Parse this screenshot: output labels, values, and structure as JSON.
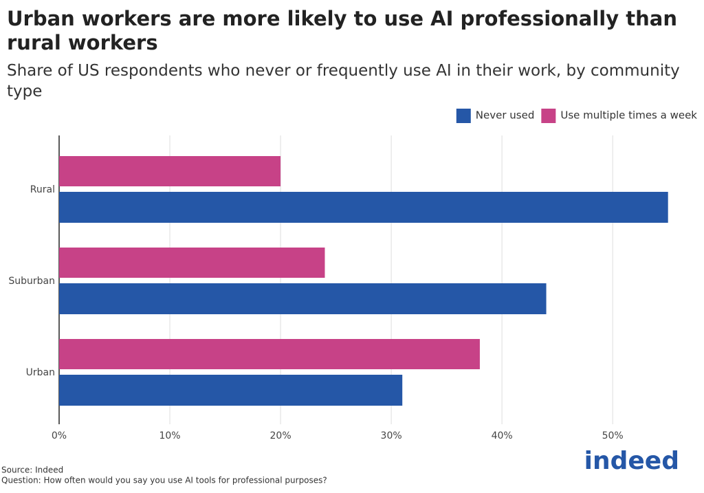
{
  "chart_data": {
    "type": "bar",
    "orientation": "horizontal",
    "title": "Urban workers are more likely to use AI professionally than rural workers",
    "subtitle": "Share of US respondents who never or frequently use AI in their work, by community type",
    "categories": [
      "Rural",
      "Suburban",
      "Urban"
    ],
    "series": [
      {
        "name": "Never used",
        "color": "#2557a7",
        "values": [
          55,
          44,
          31
        ]
      },
      {
        "name": "Use multiple times a week",
        "color": "#c74287",
        "values": [
          20,
          24,
          38
        ]
      }
    ],
    "xlim": [
      0,
      58
    ],
    "xticks": [
      {
        "value": 0,
        "label": "0%"
      },
      {
        "value": 10,
        "label": "10%"
      },
      {
        "value": 20,
        "label": "20%"
      },
      {
        "value": 30,
        "label": "30%"
      },
      {
        "value": 40,
        "label": "40%"
      },
      {
        "value": 50,
        "label": "50%"
      }
    ],
    "grid": true,
    "legend": "top-right",
    "source": "Source: Indeed",
    "note": "Question: How often would you say you use AI tools for professional purposes?",
    "logo": "indeed"
  }
}
